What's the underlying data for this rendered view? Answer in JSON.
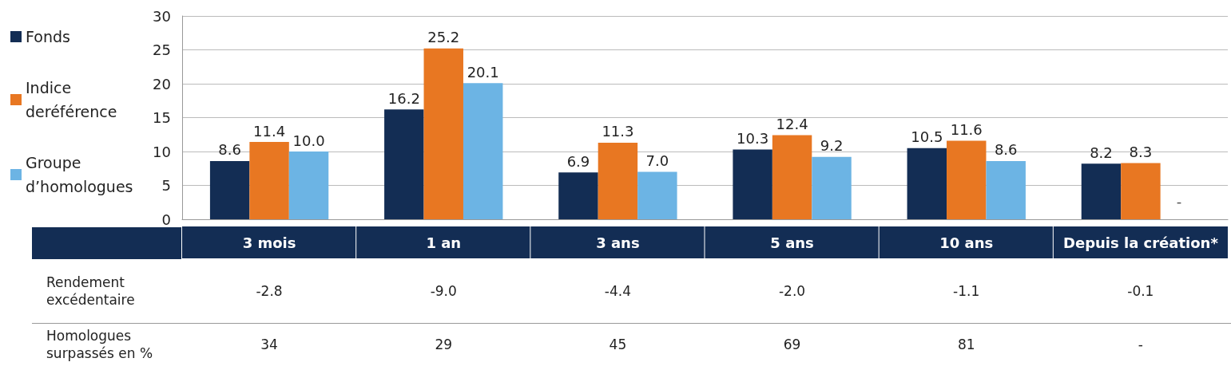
{
  "chart_data": [
    {
      "type": "bar",
      "categories": [
        "3 mois",
        "1 an",
        "3 ans",
        "5 ans",
        "10 ans",
        "Depuis la création*"
      ],
      "series": [
        {
          "name": "Fonds",
          "color": "#132d54",
          "values": [
            8.6,
            16.2,
            6.9,
            10.3,
            10.5,
            8.2
          ],
          "value_labels": [
            "8.6",
            "16.2",
            "6.9",
            "10.3",
            "10.5",
            "8.2"
          ]
        },
        {
          "name": "Indice deréférence",
          "color": "#e87722",
          "values": [
            11.4,
            25.2,
            11.3,
            12.4,
            11.6,
            8.3
          ],
          "value_labels": [
            "11.4",
            "25.2",
            "11.3",
            "12.4",
            "11.6",
            "8.3"
          ]
        },
        {
          "name": "Groupe d’homologues",
          "color": "#6cb4e4",
          "values": [
            10.0,
            20.1,
            7.0,
            9.2,
            8.6,
            null
          ],
          "value_labels": [
            "10.0",
            "20.1",
            "7.0",
            "9.2",
            "8.6",
            "-"
          ]
        }
      ],
      "ylim": [
        0,
        30
      ],
      "yticks": [
        0,
        5,
        10,
        15,
        20,
        25,
        30
      ],
      "grid": "y",
      "legend": "left"
    },
    {
      "type": "other",
      "y_categories": [
        "Rendement excédentaire",
        "Homologues surpassés en %"
      ],
      "cell_labels": [
        [
          "-2.8",
          "-9.0",
          "-4.4",
          "-2.0",
          "-1.1",
          "-0.1"
        ],
        [
          "34",
          "29",
          "45",
          "69",
          "81",
          "-"
        ]
      ]
    }
  ]
}
